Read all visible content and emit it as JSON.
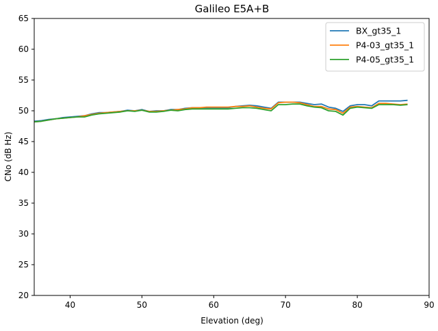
{
  "chart_data": {
    "type": "line",
    "title": "Galileo E5A+B",
    "xlabel": "Elevation (deg)",
    "ylabel": "CNo (dB Hz)",
    "xlim": [
      35,
      90
    ],
    "ylim": [
      20,
      65
    ],
    "xticks": [
      40,
      50,
      60,
      70,
      80,
      90
    ],
    "yticks": [
      20,
      25,
      30,
      35,
      40,
      45,
      50,
      55,
      60,
      65
    ],
    "grid": false,
    "legend_position": "top-right",
    "x": [
      35,
      36,
      37,
      38,
      39,
      40,
      41,
      42,
      43,
      44,
      45,
      46,
      47,
      48,
      49,
      50,
      51,
      52,
      53,
      54,
      55,
      56,
      57,
      58,
      59,
      60,
      61,
      62,
      63,
      64,
      65,
      66,
      67,
      68,
      69,
      70,
      71,
      72,
      73,
      74,
      75,
      76,
      77,
      78,
      79,
      80,
      81,
      82,
      83,
      84,
      85,
      86,
      87
    ],
    "series": [
      {
        "name": "BX_gt35_1",
        "color": "#1f77b4",
        "values": [
          48.3,
          48.4,
          48.6,
          48.7,
          48.9,
          49.0,
          49.1,
          49.2,
          49.5,
          49.7,
          49.7,
          49.8,
          49.9,
          50.1,
          50.0,
          50.2,
          49.9,
          50.0,
          50.0,
          50.2,
          50.2,
          50.4,
          50.5,
          50.5,
          50.5,
          50.5,
          50.5,
          50.5,
          50.7,
          50.8,
          50.9,
          50.8,
          50.6,
          50.4,
          51.4,
          51.4,
          51.4,
          51.4,
          51.2,
          51.0,
          51.1,
          50.6,
          50.4,
          49.9,
          50.8,
          51.0,
          51.0,
          50.8,
          51.6,
          51.6,
          51.6,
          51.6,
          51.7
        ]
      },
      {
        "name": "P4-03_gt35_1",
        "color": "#ff7f0e",
        "values": [
          48.2,
          48.3,
          48.5,
          48.7,
          48.8,
          48.9,
          49.0,
          49.2,
          49.4,
          49.6,
          49.7,
          49.8,
          49.9,
          50.0,
          50.0,
          50.1,
          49.9,
          49.9,
          50.0,
          50.1,
          50.2,
          50.3,
          50.5,
          50.5,
          50.6,
          50.6,
          50.6,
          50.6,
          50.7,
          50.7,
          50.8,
          50.6,
          50.4,
          50.3,
          51.3,
          51.4,
          51.4,
          51.3,
          51.0,
          50.7,
          50.7,
          50.3,
          50.2,
          49.6,
          50.6,
          50.7,
          50.6,
          50.5,
          51.2,
          51.2,
          51.1,
          51.0,
          51.1
        ]
      },
      {
        "name": "P4-05_gt35_1",
        "color": "#2ca02c",
        "values": [
          48.2,
          48.3,
          48.5,
          48.7,
          48.8,
          48.9,
          49.0,
          49.0,
          49.3,
          49.5,
          49.6,
          49.7,
          49.8,
          50.0,
          49.9,
          50.1,
          49.8,
          49.8,
          49.9,
          50.1,
          50.0,
          50.2,
          50.3,
          50.3,
          50.3,
          50.3,
          50.3,
          50.3,
          50.4,
          50.5,
          50.5,
          50.4,
          50.2,
          50.0,
          51.0,
          51.0,
          51.1,
          51.1,
          50.8,
          50.6,
          50.5,
          50.0,
          49.9,
          49.3,
          50.4,
          50.6,
          50.5,
          50.4,
          51.0,
          51.0,
          51.0,
          50.9,
          51.0
        ]
      }
    ]
  }
}
